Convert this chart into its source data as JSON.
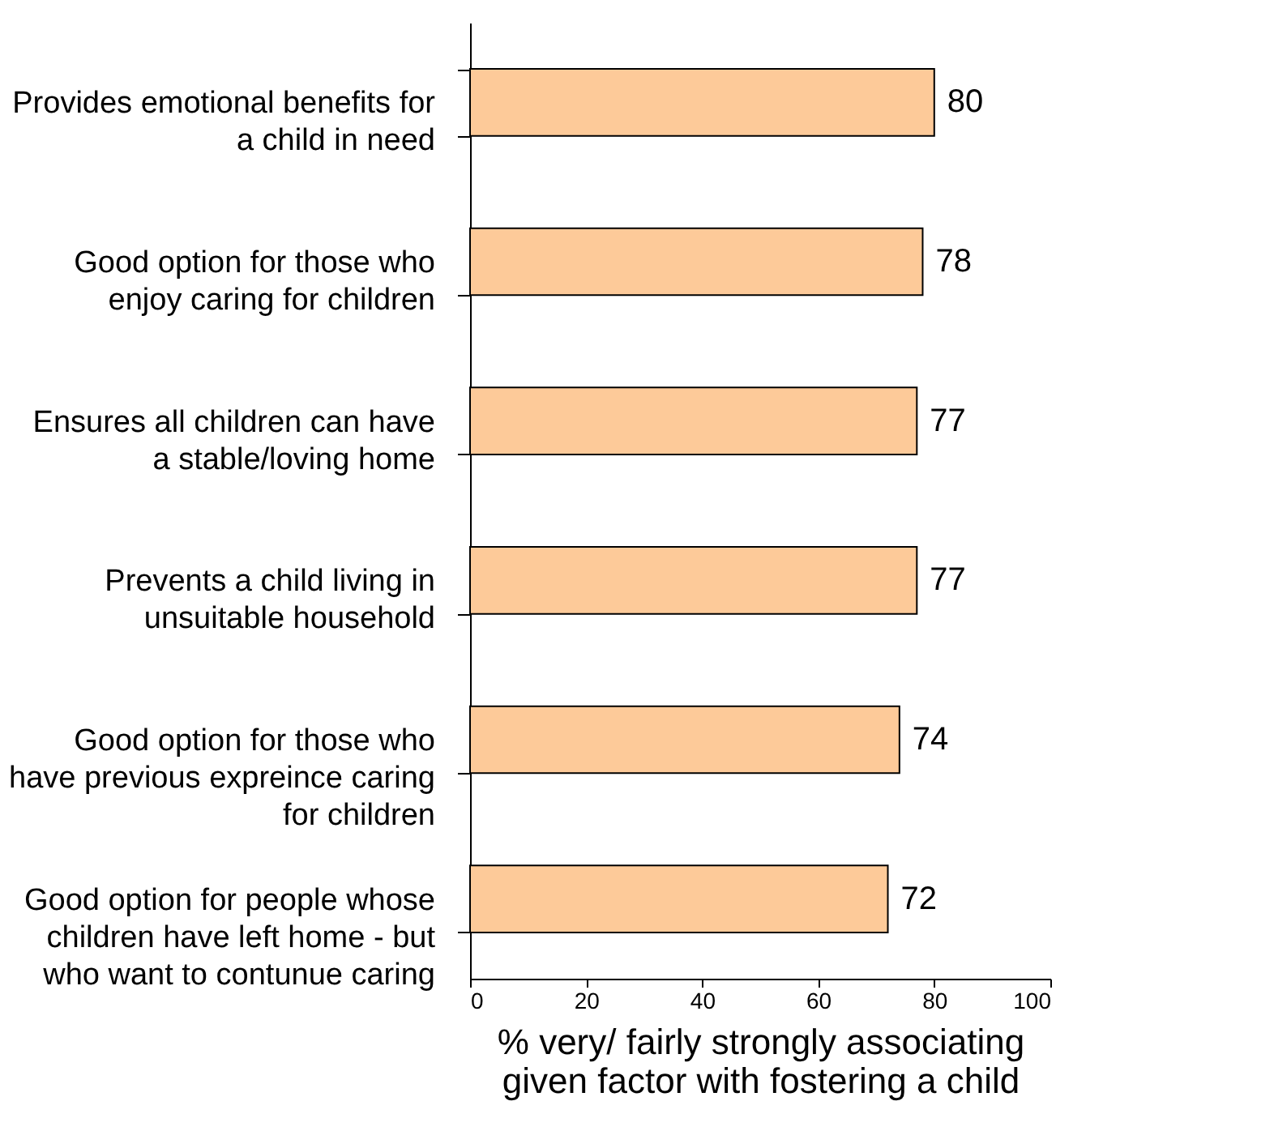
{
  "chart_data": {
    "type": "bar",
    "orientation": "horizontal",
    "categories": [
      "Provides emotional benefits for\na child in need",
      "Good option for those who\nenjoy caring for children",
      "Ensures all children can have\na stable/loving home",
      "Prevents a child living in\nunsuitable household",
      "Good option for those who\nhave previous expreince caring\nfor children",
      "Good option for people whose\nchildren have left home - but\nwho want to contunue caring"
    ],
    "values": [
      80,
      78,
      77,
      77,
      74,
      72
    ],
    "color": "#fdca99",
    "xlim": [
      0,
      100
    ],
    "xticks": [
      0,
      20,
      40,
      60,
      80,
      100
    ],
    "xlabel": "% very/ fairly strongly associating\ngiven factor with fostering a child",
    "data_labels": true,
    "grid": false
  }
}
